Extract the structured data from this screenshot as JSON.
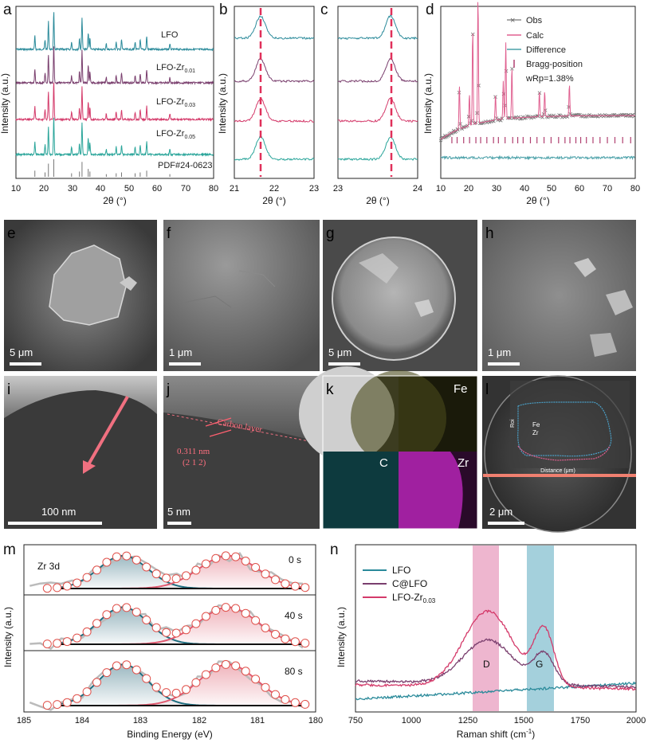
{
  "panel_labels": {
    "a": "a",
    "b": "b",
    "c": "c",
    "d": "d",
    "e": "e",
    "f": "f",
    "g": "g",
    "h": "h",
    "i": "i",
    "j": "j",
    "k": "k",
    "l": "l",
    "m": "m",
    "n": "n"
  },
  "colors": {
    "lfo": "#2a8a9a",
    "zr001": "#7a3f6e",
    "zr003": "#d43a6a",
    "zr005": "#2aa59a",
    "ref": "#777777",
    "calc": "#e06090",
    "bragg": "#b04070",
    "obs": "#777777",
    "diff": "#4aa0a8"
  },
  "panel_a": {
    "ylabel": "Intensity (a.u.)",
    "xlabel": "2θ (°)",
    "xticks": [
      "10",
      "20",
      "30",
      "40",
      "50",
      "60",
      "70",
      "80"
    ],
    "series": [
      {
        "name": "LFO"
      },
      {
        "name": "LFO-Zr",
        "sub": "0.01"
      },
      {
        "name": "LFO-Zr",
        "sub": "0.03"
      },
      {
        "name": "LFO-Zr",
        "sub": "0.05"
      }
    ],
    "reference": "PDF#24-0623"
  },
  "panel_b": {
    "ylabel": "Intensity (a.u.)",
    "xlabel": "2θ (°)",
    "xticks": [
      "21",
      "22",
      "23"
    ]
  },
  "panel_c": {
    "xlabel": "2θ (°)",
    "xticks": [
      "23",
      "24"
    ]
  },
  "panel_d": {
    "ylabel": "Intensity (a.u.)",
    "xlabel": "2θ (°)",
    "xticks": [
      "10",
      "20",
      "30",
      "40",
      "50",
      "60",
      "70",
      "80"
    ],
    "legend": [
      "Obs",
      "Calc",
      "Difference",
      "Bragg-position"
    ],
    "wrp": "wRp=1.38%"
  },
  "micro": {
    "e": "5 μm",
    "f": "1 μm",
    "g": "5 μm",
    "h": "1 μm",
    "i": "100 nm",
    "j": "5 nm",
    "l": "2 μm",
    "j_layer": "Carbon layer",
    "j_spacing": "0.311 nm",
    "j_plane": "(2 1 2)",
    "k_elements": [
      "Fe",
      "C",
      "Zr"
    ],
    "l_legend": [
      "Fe",
      "Zr"
    ],
    "l_xlabel": "Distance (μm)",
    "l_ylabel": "Roi"
  },
  "panel_m": {
    "ylabel": "Intensity (a.u.)",
    "xlabel": "Binding Energy (eV)",
    "title": "Zr 3d",
    "times": [
      "0 s",
      "40 s",
      "80 s"
    ],
    "xticks": [
      "185",
      "184",
      "183",
      "182",
      "181",
      "180"
    ]
  },
  "panel_n": {
    "ylabel": "Intensity (a.u.)",
    "xlabel": "Raman shift (cm",
    "xlabel_sup": "-1",
    "xlabel_end": ")",
    "xticks": [
      "750",
      "1000",
      "1250",
      "1500",
      "1750",
      "2000"
    ],
    "legend": [
      {
        "name": "LFO"
      },
      {
        "name": "C@LFO"
      },
      {
        "name": "LFO-Zr",
        "sub": "0.03"
      }
    ],
    "bands": [
      "D",
      "G"
    ]
  }
}
